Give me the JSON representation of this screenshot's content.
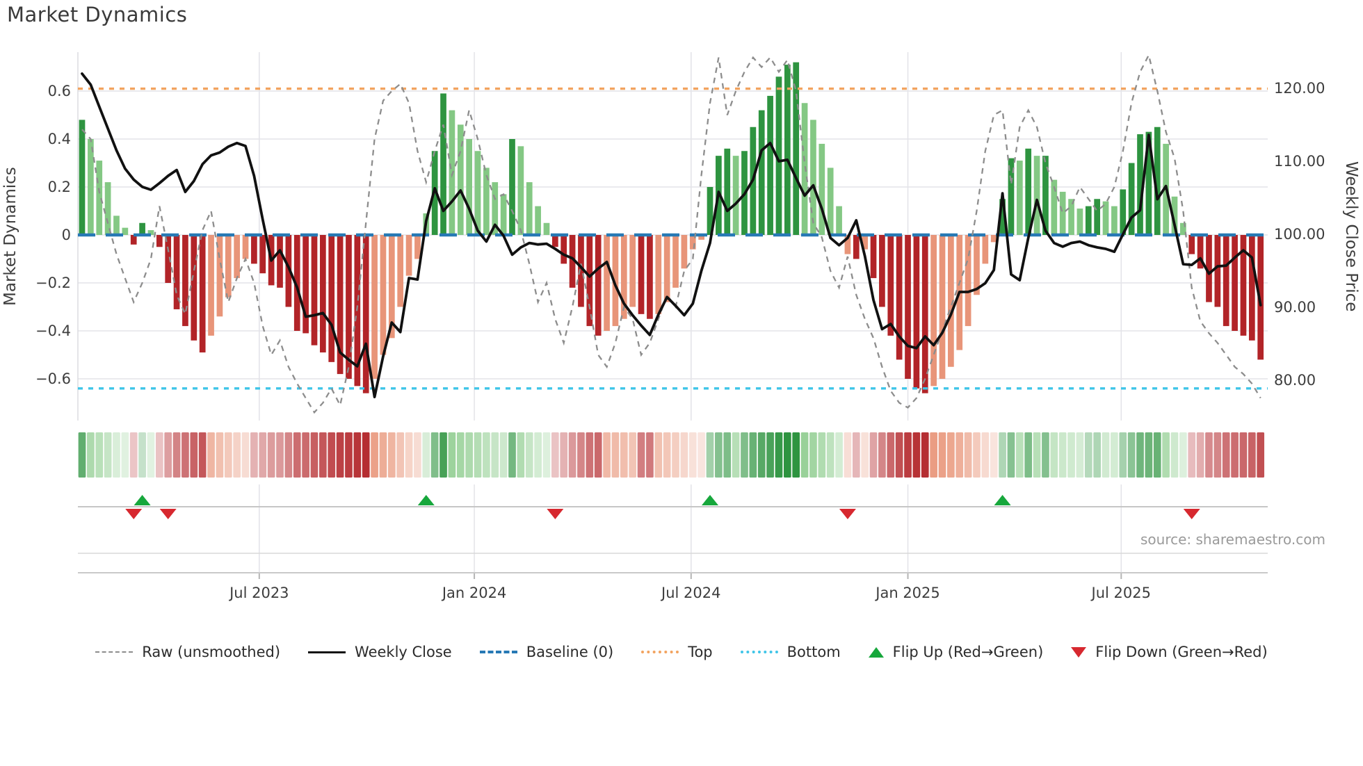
{
  "title": "Market Dynamics",
  "source_text": "source: sharemaestro.com",
  "axes": {
    "left_title": "Market Dynamics",
    "right_title": "Weekly Close Price",
    "left_ticks": [
      {
        "v": 0.6,
        "label": "0.6"
      },
      {
        "v": 0.4,
        "label": "0.4"
      },
      {
        "v": 0.2,
        "label": "0.2"
      },
      {
        "v": 0,
        "label": "0"
      },
      {
        "v": -0.2,
        "label": "−0.2"
      },
      {
        "v": -0.4,
        "label": "−0.4"
      },
      {
        "v": -0.6,
        "label": "−0.6"
      }
    ],
    "right_ticks": [
      {
        "p": 120,
        "label": "120.00"
      },
      {
        "p": 110,
        "label": "110.00"
      },
      {
        "p": 100,
        "label": "100.00"
      },
      {
        "p": 90,
        "label": "90.00"
      },
      {
        "p": 80,
        "label": "80.00"
      }
    ],
    "x_ticks": [
      {
        "week": 20.6,
        "label": "Jul 2023"
      },
      {
        "week": 45.6,
        "label": "Jan 2024"
      },
      {
        "week": 70.8,
        "label": "Jul 2024"
      },
      {
        "week": 96.0,
        "label": "Jan 2025"
      },
      {
        "week": 120.8,
        "label": "Jul 2025"
      }
    ]
  },
  "legend": {
    "raw": "Raw (unsmoothed)",
    "close": "Weekly Close",
    "baseline": "Baseline (0)",
    "top": "Top",
    "bottom": "Bottom",
    "flip_up": "Flip Up (Red→Green)",
    "flip_down": "Flip Down (Green→Red)"
  },
  "colors": {
    "pos_dark": "#2e9440",
    "pos_light": "#84c884",
    "neg_dark": "#b22428",
    "neg_light": "#e89579",
    "close": "#111111",
    "raw": "#8d8d8d",
    "baseline": "#2779b5",
    "top": "#f2a35f",
    "bottom": "#3fc5e8",
    "flip_up": "#17a73c",
    "flip_down": "#d7282f",
    "grid": "#e4e4e9",
    "spine": "#c9c9c9",
    "text": "#3d3d3d"
  },
  "chart_data": {
    "type": "combo_bar_line_heatmap",
    "x_unit": "weekly",
    "n_weeks": 138,
    "x_tick_labels": [
      "Jul 2023",
      "Jan 2024",
      "Jul 2024",
      "Jan 2025",
      "Jul 2025"
    ],
    "baseline": 0,
    "top_threshold": 0.61,
    "bottom_threshold": -0.64,
    "ylim_left": [
      -0.79,
      0.76
    ],
    "ylim_right": [
      74,
      125
    ],
    "legend_position": "bottom center",
    "grid": true,
    "heatmap": "strip below main panel mirrors oscillator bar values as color intensity",
    "flip_up_weeks": [
      7,
      40,
      73,
      107
    ],
    "flip_down_weeks": [
      6,
      10,
      55,
      89,
      129
    ],
    "series": [
      {
        "name": "Oscillator bars (Market Dynamics)",
        "type": "bar",
        "axis": "left",
        "shading_rule": "dark shade when |value| rising vs prior week, light shade when falling; green positive, red negative",
        "values": [
          0.48,
          0.4,
          0.31,
          0.22,
          0.08,
          0.03,
          -0.04,
          0.05,
          0.02,
          -0.05,
          -0.2,
          -0.31,
          -0.38,
          -0.44,
          -0.49,
          -0.42,
          -0.34,
          -0.26,
          -0.18,
          -0.1,
          -0.12,
          -0.16,
          -0.21,
          -0.22,
          -0.3,
          -0.4,
          -0.41,
          -0.46,
          -0.49,
          -0.53,
          -0.58,
          -0.6,
          -0.63,
          -0.66,
          -0.6,
          -0.5,
          -0.43,
          -0.3,
          -0.17,
          -0.1,
          0.09,
          0.35,
          0.59,
          0.52,
          0.46,
          0.4,
          0.35,
          0.28,
          0.22,
          0.17,
          0.4,
          0.37,
          0.22,
          0.12,
          0.05,
          -0.05,
          -0.12,
          -0.22,
          -0.3,
          -0.38,
          -0.42,
          -0.4,
          -0.38,
          -0.35,
          -0.3,
          -0.33,
          -0.35,
          -0.33,
          -0.28,
          -0.22,
          -0.14,
          -0.06,
          -0.02,
          0.2,
          0.33,
          0.36,
          0.33,
          0.35,
          0.45,
          0.52,
          0.58,
          0.66,
          0.71,
          0.72,
          0.55,
          0.48,
          0.38,
          0.28,
          0.12,
          -0.08,
          -0.1,
          -0.06,
          -0.18,
          -0.3,
          -0.42,
          -0.52,
          -0.6,
          -0.64,
          -0.66,
          -0.63,
          -0.6,
          -0.55,
          -0.48,
          -0.38,
          -0.25,
          -0.12,
          -0.03,
          0.15,
          0.32,
          0.31,
          0.36,
          0.33,
          0.33,
          0.23,
          0.18,
          0.15,
          0.11,
          0.12,
          0.15,
          0.14,
          0.12,
          0.19,
          0.3,
          0.42,
          0.43,
          0.45,
          0.38,
          0.16,
          0.05,
          -0.08,
          -0.14,
          -0.28,
          -0.3,
          -0.38,
          -0.4,
          -0.42,
          -0.44,
          -0.52
        ]
      },
      {
        "name": "Raw (unsmoothed)",
        "type": "line",
        "axis": "left",
        "values": [
          0.44,
          0.4,
          0.18,
          0.05,
          -0.08,
          -0.18,
          -0.28,
          -0.2,
          -0.1,
          0.12,
          -0.06,
          -0.25,
          -0.33,
          -0.15,
          0.02,
          0.1,
          -0.1,
          -0.28,
          -0.18,
          -0.1,
          -0.2,
          -0.38,
          -0.5,
          -0.44,
          -0.55,
          -0.62,
          -0.68,
          -0.74,
          -0.7,
          -0.64,
          -0.71,
          -0.55,
          -0.3,
          0.05,
          0.4,
          0.56,
          0.6,
          0.63,
          0.55,
          0.35,
          0.22,
          0.35,
          0.46,
          0.25,
          0.35,
          0.52,
          0.4,
          0.25,
          0.15,
          0.17,
          0.1,
          0.02,
          -0.12,
          -0.28,
          -0.2,
          -0.35,
          -0.45,
          -0.3,
          -0.12,
          -0.3,
          -0.5,
          -0.55,
          -0.45,
          -0.3,
          -0.35,
          -0.5,
          -0.45,
          -0.35,
          -0.25,
          -0.3,
          -0.15,
          -0.1,
          0.25,
          0.55,
          0.74,
          0.5,
          0.6,
          0.68,
          0.74,
          0.7,
          0.74,
          0.68,
          0.73,
          0.6,
          0.3,
          0.05,
          -0.01,
          -0.15,
          -0.22,
          -0.09,
          -0.25,
          -0.35,
          -0.43,
          -0.55,
          -0.65,
          -0.7,
          -0.72,
          -0.68,
          -0.6,
          -0.5,
          -0.4,
          -0.3,
          -0.2,
          -0.1,
          0.1,
          0.35,
          0.5,
          0.52,
          0.21,
          0.45,
          0.52,
          0.45,
          0.3,
          0.2,
          0.09,
          0.12,
          0.2,
          0.15,
          0.1,
          0.13,
          0.2,
          0.35,
          0.55,
          0.68,
          0.75,
          0.6,
          0.43,
          0.32,
          0.1,
          -0.22,
          -0.36,
          -0.41,
          -0.45,
          -0.5,
          -0.55,
          -0.58,
          -0.62,
          -0.68
        ]
      },
      {
        "name": "Weekly Close",
        "type": "line",
        "axis": "right",
        "values": [
          122.0,
          120.5,
          117.5,
          114.5,
          111.5,
          109.0,
          107.5,
          106.5,
          106.1,
          107.0,
          108.0,
          108.8,
          105.8,
          107.3,
          109.6,
          110.8,
          111.2,
          112.0,
          112.5,
          112.1,
          108.0,
          102.0,
          96.4,
          97.8,
          95.5,
          92.7,
          88.7,
          88.9,
          89.2,
          87.6,
          83.8,
          82.8,
          81.9,
          85.0,
          77.7,
          83.3,
          87.9,
          86.6,
          94.0,
          93.8,
          101.8,
          106.3,
          103.2,
          104.5,
          106.0,
          103.5,
          100.5,
          99.0,
          101.3,
          99.8,
          97.2,
          98.2,
          98.8,
          98.6,
          98.7,
          98.0,
          97.2,
          96.7,
          95.5,
          94.2,
          95.3,
          96.2,
          93.0,
          90.5,
          88.9,
          87.5,
          86.2,
          89.0,
          91.4,
          90.2,
          88.9,
          90.5,
          95.0,
          98.8,
          105.8,
          103.2,
          104.2,
          105.5,
          107.5,
          111.5,
          112.5,
          110.0,
          110.2,
          107.7,
          105.3,
          106.7,
          103.5,
          99.5,
          98.5,
          99.5,
          101.9,
          97.0,
          91.0,
          87.0,
          87.7,
          86.0,
          84.7,
          84.4,
          86.0,
          84.8,
          86.5,
          89.0,
          92.1,
          92.1,
          92.5,
          93.3,
          95.1,
          105.6,
          94.5,
          93.7,
          99.5,
          104.7,
          100.5,
          98.8,
          98.3,
          98.8,
          99.0,
          98.5,
          98.2,
          98.0,
          97.6,
          100.0,
          102.3,
          103.3,
          113.6,
          104.8,
          106.6,
          101.3,
          95.9,
          95.8,
          96.7,
          94.6,
          95.6,
          95.7,
          96.8,
          97.8,
          96.8,
          90.3
        ]
      }
    ]
  }
}
